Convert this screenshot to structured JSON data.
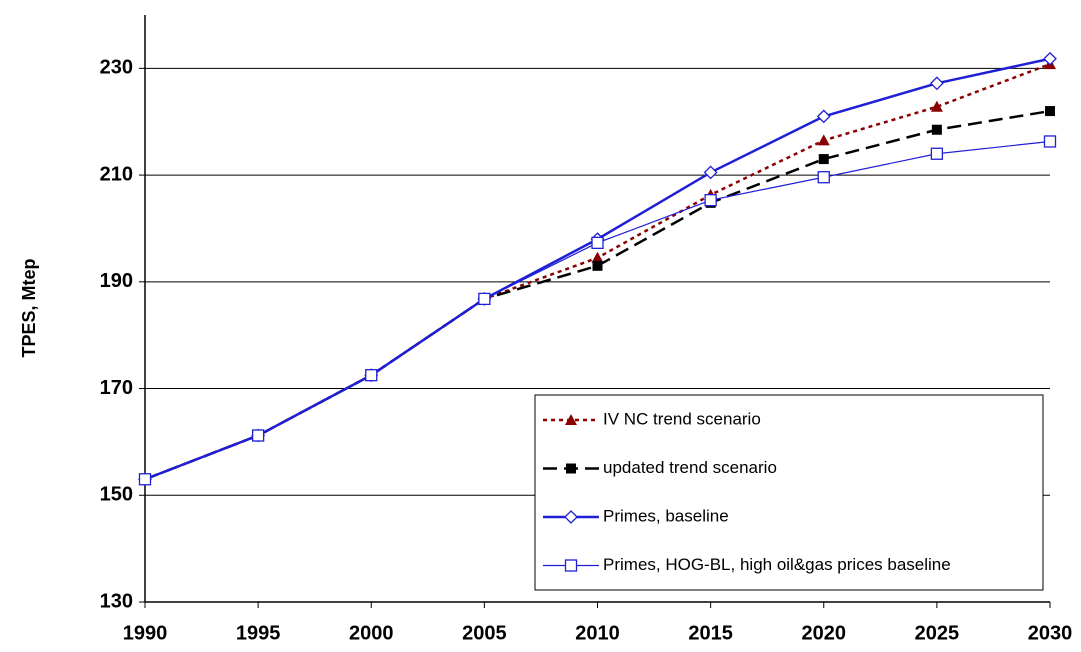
{
  "chart_data": {
    "type": "line",
    "y_label": "TPES, Mtep",
    "x": [
      1990,
      1995,
      2000,
      2005,
      2010,
      2015,
      2020,
      2025,
      2030
    ],
    "xlim": [
      1990,
      2030
    ],
    "xticks": [
      1990,
      1995,
      2000,
      2005,
      2010,
      2015,
      2020,
      2025,
      2030
    ],
    "ylim": [
      130,
      240
    ],
    "yticks": [
      130,
      150,
      170,
      190,
      210,
      230
    ],
    "grid": true,
    "legend": "lower right",
    "series": [
      {
        "name": "IV NC trend scenario",
        "color": "#8b0000",
        "line_style": "dotted",
        "marker": "triangle",
        "width": 2.5,
        "values": [
          153,
          161.2,
          172.5,
          186.8,
          194.5,
          206.3,
          216.5,
          222.8,
          230.8
        ]
      },
      {
        "name": "updated trend scenario",
        "color": "#000000",
        "line_style": "dashed",
        "marker": "filled-square",
        "width": 2.5,
        "values": [
          153,
          161.2,
          172.5,
          186.8,
          193,
          204.8,
          213,
          218.5,
          222
        ]
      },
      {
        "name": "Primes, baseline",
        "color": "#1f1fd6",
        "line_style": "solid",
        "marker": "diamond",
        "width": 2.5,
        "values": [
          153,
          161.2,
          172.5,
          186.8,
          198,
          210.5,
          221,
          227.2,
          231.8
        ]
      },
      {
        "name": "Primes, HOG-BL, high oil&gas prices baseline",
        "color": "#1f1fd6",
        "line_style": "solid",
        "marker": "open-square",
        "width": 1.2,
        "values": [
          153,
          161.2,
          172.5,
          186.8,
          197.3,
          205.3,
          209.6,
          214,
          216.3
        ]
      }
    ]
  }
}
